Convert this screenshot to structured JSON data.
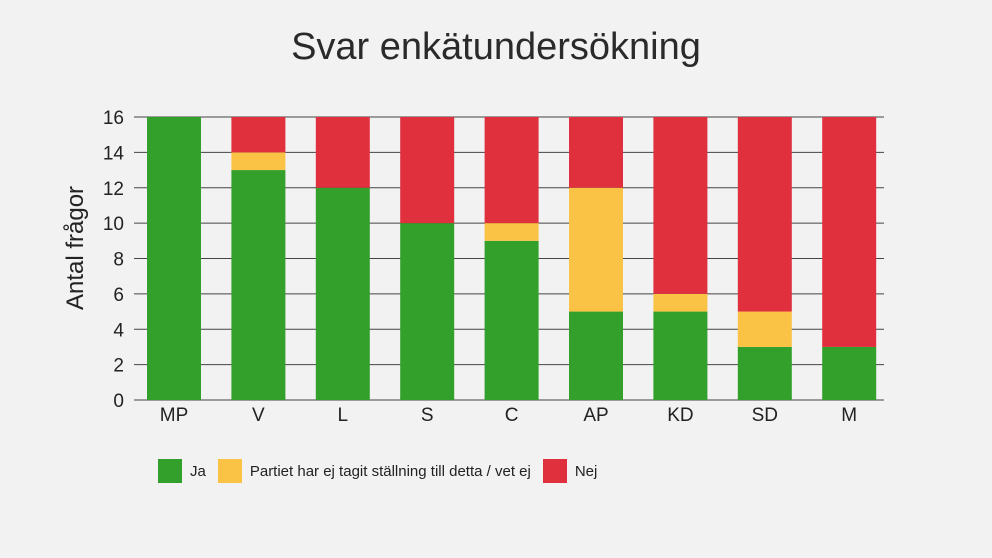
{
  "chart_data": {
    "type": "bar",
    "stacked": true,
    "title": "Svar enkätundersökning",
    "xlabel": "",
    "ylabel": "Antal frågor",
    "ylim": [
      0,
      16
    ],
    "yticks": [
      0,
      2,
      4,
      6,
      8,
      10,
      12,
      14,
      16
    ],
    "grid": true,
    "legend_position": "bottom-left",
    "categories": [
      "MP",
      "V",
      "L",
      "S",
      "C",
      "AP",
      "KD",
      "SD",
      "M"
    ],
    "series": [
      {
        "name": "Ja",
        "color": "#33a02c",
        "values": [
          16,
          13,
          12,
          10,
          9,
          5,
          5,
          3,
          3
        ]
      },
      {
        "name": "Partiet har ej tagit ställning till detta / vet ej",
        "color": "#fbc345",
        "values": [
          0,
          1,
          0,
          0,
          1,
          7,
          1,
          2,
          0
        ]
      },
      {
        "name": "Nej",
        "color": "#e0303e",
        "values": [
          0,
          2,
          4,
          6,
          6,
          4,
          10,
          11,
          13
        ]
      }
    ]
  }
}
